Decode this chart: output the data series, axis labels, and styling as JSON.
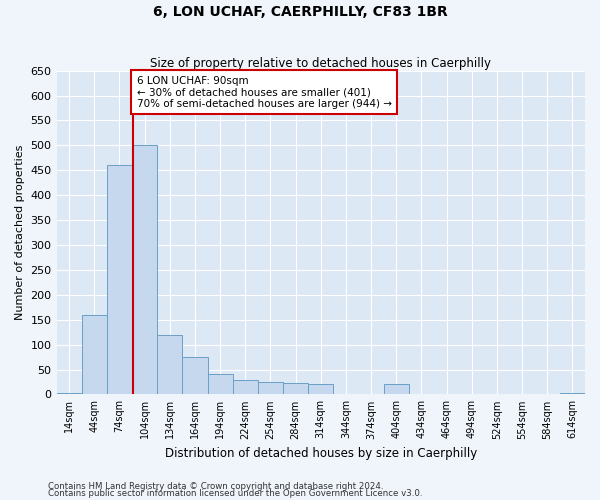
{
  "title": "6, LON UCHAF, CAERPHILLY, CF83 1BR",
  "subtitle": "Size of property relative to detached houses in Caerphilly",
  "xlabel": "Distribution of detached houses by size in Caerphilly",
  "ylabel": "Number of detached properties",
  "bar_color": "#c5d8ed",
  "bar_edge_color": "#6aa0c7",
  "background_color": "#dde8f5",
  "grid_color": "#ffffff",
  "categories": [
    "14sqm",
    "44sqm",
    "74sqm",
    "104sqm",
    "134sqm",
    "164sqm",
    "194sqm",
    "224sqm",
    "254sqm",
    "284sqm",
    "314sqm",
    "344sqm",
    "374sqm",
    "404sqm",
    "434sqm",
    "464sqm",
    "494sqm",
    "524sqm",
    "554sqm",
    "584sqm",
    "614sqm"
  ],
  "values": [
    3,
    160,
    460,
    500,
    120,
    75,
    42,
    28,
    25,
    22,
    20,
    0,
    0,
    20,
    0,
    0,
    0,
    0,
    0,
    0,
    3
  ],
  "ylim": [
    0,
    650
  ],
  "yticks": [
    0,
    50,
    100,
    150,
    200,
    250,
    300,
    350,
    400,
    450,
    500,
    550,
    600,
    650
  ],
  "red_line_x": 2.53,
  "annotation_text": "6 LON UCHAF: 90sqm\n← 30% of detached houses are smaller (401)\n70% of semi-detached houses are larger (944) →",
  "annotation_box_facecolor": "#ffffff",
  "annotation_box_edgecolor": "#cc0000",
  "footnote1": "Contains HM Land Registry data © Crown copyright and database right 2024.",
  "footnote2": "Contains public sector information licensed under the Open Government Licence v3.0.",
  "fig_facecolor": "#f0f4fb"
}
